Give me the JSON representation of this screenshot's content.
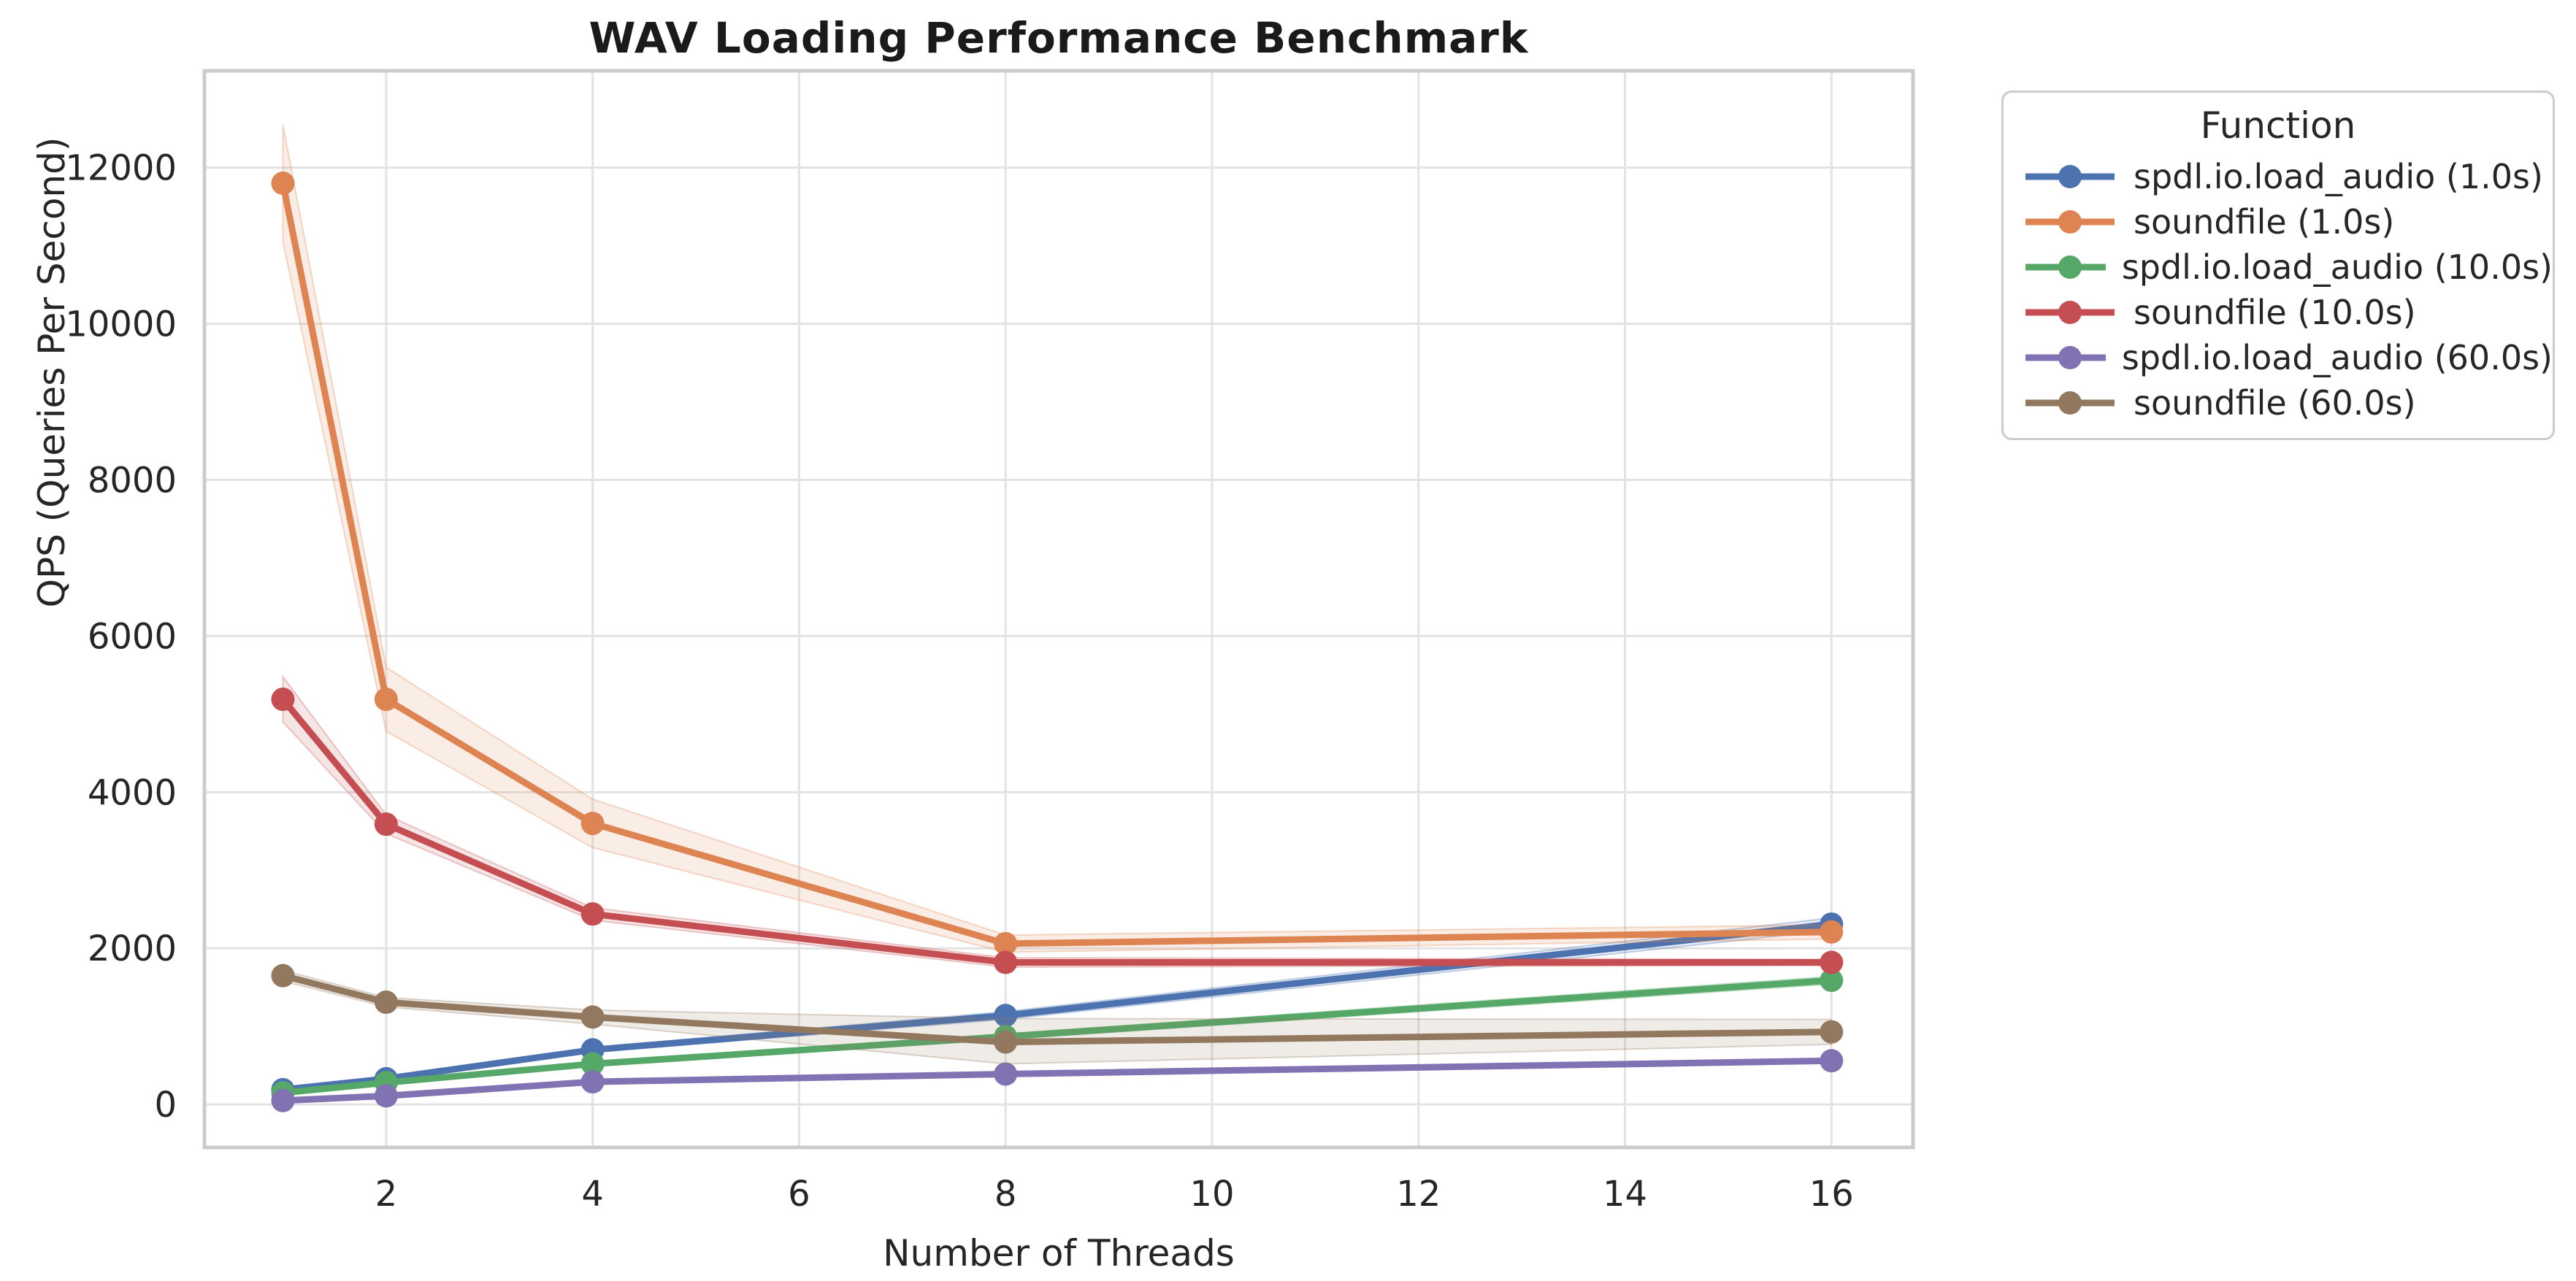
{
  "chart_data": {
    "type": "line",
    "title": "WAV Loading Performance Benchmark",
    "xlabel": "Number of Threads",
    "ylabel": "QPS (Queries Per Second)",
    "legend_title": "Function",
    "legend_position": "outside upper right",
    "grid": true,
    "x": [
      1,
      2,
      4,
      8,
      16
    ],
    "xticks": [
      2,
      4,
      6,
      8,
      10,
      12,
      14,
      16
    ],
    "yticks": [
      0,
      2000,
      4000,
      6000,
      8000,
      10000,
      12000
    ],
    "xlim": [
      0.24,
      16.79
    ],
    "ylim": [
      -550,
      13240
    ],
    "series": [
      {
        "name": "spdl.io.load_audio (1.0s)",
        "color": "#4C72B0",
        "values": [
          190,
          330,
          700,
          1140,
          2310
        ],
        "band_low": [
          170,
          310,
          670,
          1090,
          2230
        ],
        "band_high": [
          210,
          350,
          730,
          1190,
          2390
        ]
      },
      {
        "name": "soundfile (1.0s)",
        "color": "#DD8452",
        "values": [
          11800,
          5190,
          3600,
          2060,
          2210
        ],
        "band_low": [
          11050,
          4780,
          3290,
          1950,
          2120
        ],
        "band_high": [
          12550,
          5600,
          3910,
          2170,
          2300
        ]
      },
      {
        "name": "spdl.io.load_audio (10.0s)",
        "color": "#55A868",
        "values": [
          150,
          280,
          520,
          870,
          1590
        ],
        "band_low": [
          135,
          265,
          495,
          835,
          1540
        ],
        "band_high": [
          165,
          295,
          545,
          905,
          1640
        ]
      },
      {
        "name": "soundfile (10.0s)",
        "color": "#C44E52",
        "values": [
          5190,
          3590,
          2440,
          1820,
          1820
        ],
        "band_low": [
          4900,
          3470,
          2360,
          1760,
          1780
        ],
        "band_high": [
          5480,
          3710,
          2520,
          1880,
          1860
        ]
      },
      {
        "name": "spdl.io.load_audio (60.0s)",
        "color": "#8172B3",
        "values": [
          50,
          110,
          290,
          390,
          560
        ],
        "band_low": [
          40,
          100,
          265,
          365,
          535
        ],
        "band_high": [
          60,
          120,
          315,
          415,
          585
        ]
      },
      {
        "name": "soundfile (60.0s)",
        "color": "#937860",
        "values": [
          1650,
          1310,
          1120,
          800,
          930
        ],
        "band_low": [
          1580,
          1250,
          1030,
          520,
          770
        ],
        "band_high": [
          1720,
          1370,
          1210,
          1100,
          1090
        ]
      }
    ]
  },
  "colors": {
    "background": "#ffffff",
    "grid": "#e3e3e3",
    "spine": "#cccccc",
    "tick_text": "#262626",
    "title_text": "#1a1a1a"
  }
}
